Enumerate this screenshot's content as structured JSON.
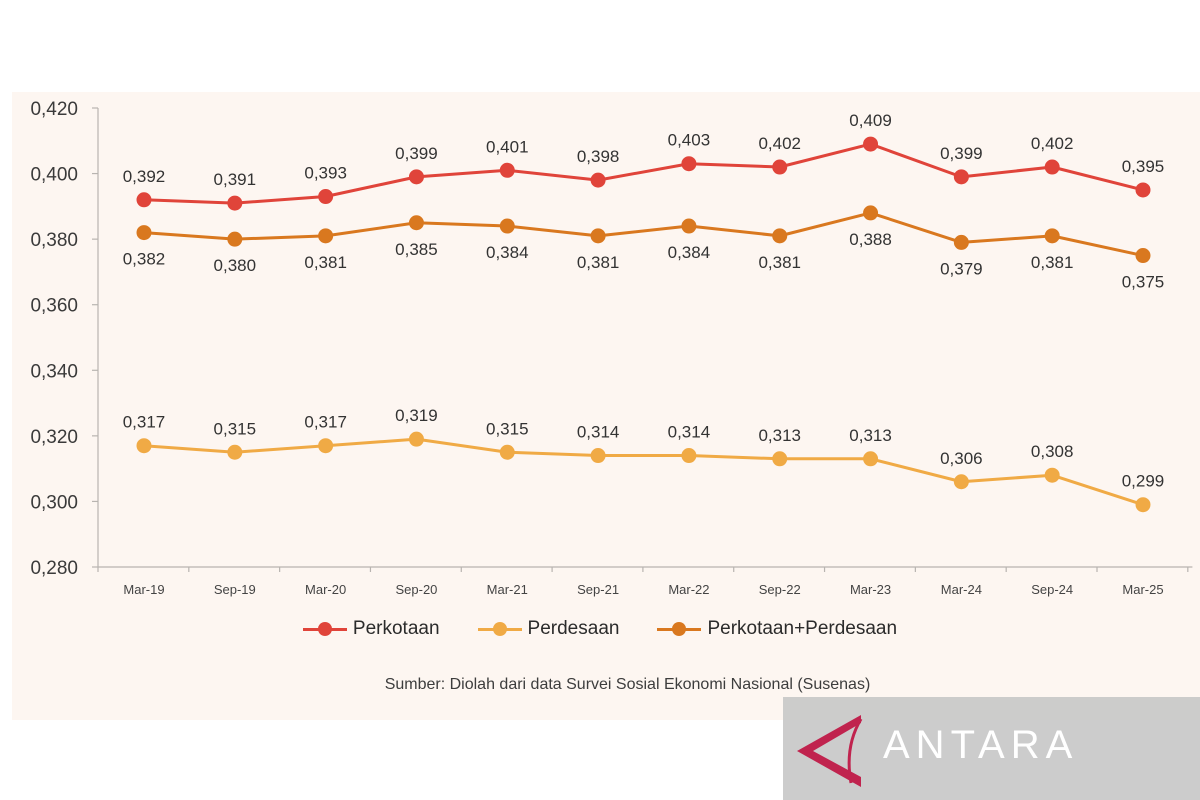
{
  "chart_data": {
    "type": "line",
    "title": "",
    "xlabel": "",
    "ylabel": "",
    "categories": [
      "Mar-19",
      "Sep-19",
      "Mar-20",
      "Sep-20",
      "Mar-21",
      "Sep-21",
      "Mar-22",
      "Sep-22",
      "Mar-23",
      "Mar-24",
      "Sep-24",
      "Mar-25"
    ],
    "ylim": [
      0.28,
      0.42
    ],
    "yticks": [
      "0,420",
      "0,400",
      "0,380",
      "0,360",
      "0,340",
      "0,320",
      "0,300",
      "0,280"
    ],
    "ytick_values": [
      0.42,
      0.4,
      0.38,
      0.36,
      0.34,
      0.32,
      0.3,
      0.28
    ],
    "grid": false,
    "legend_position": "bottom",
    "series": [
      {
        "name": "Perkotaan",
        "color": "#e0443a",
        "label_position": "above",
        "values": [
          0.392,
          0.391,
          0.393,
          0.399,
          0.401,
          0.398,
          0.403,
          0.402,
          0.409,
          0.399,
          0.402,
          0.395
        ],
        "labels": [
          "0,392",
          "0,391",
          "0,393",
          "0,399",
          "0,401",
          "0,398",
          "0,403",
          "0,402",
          "0,409",
          "0,399",
          "0,402",
          "0,395"
        ]
      },
      {
        "name": "Perdesaan",
        "color": "#f0aa45",
        "label_position": "above",
        "values": [
          0.317,
          0.315,
          0.317,
          0.319,
          0.315,
          0.314,
          0.314,
          0.313,
          0.313,
          0.306,
          0.308,
          0.299
        ],
        "labels": [
          "0,317",
          "0,315",
          "0,317",
          "0,319",
          "0,315",
          "0,314",
          "0,314",
          "0,313",
          "0,313",
          "0,306",
          "0,308",
          "0,299"
        ]
      },
      {
        "name": "Perkotaan+Perdesaan",
        "color": "#d9781f",
        "label_position": "below",
        "values": [
          0.382,
          0.38,
          0.381,
          0.385,
          0.384,
          0.381,
          0.384,
          0.381,
          0.388,
          0.379,
          0.381,
          0.375
        ],
        "labels": [
          "0,382",
          "0,380",
          "0,381",
          "0,385",
          "0,384",
          "0,381",
          "0,384",
          "0,381",
          "0,388",
          "0,379",
          "0,381",
          "0,375"
        ]
      }
    ],
    "source": "Sumber: Diolah dari data Survei Sosial Ekonomi Nasional (Susenas)"
  },
  "watermark": {
    "brand": "ANTARA",
    "icon": "antara-logo-icon",
    "logo_color": "#c0234e"
  }
}
